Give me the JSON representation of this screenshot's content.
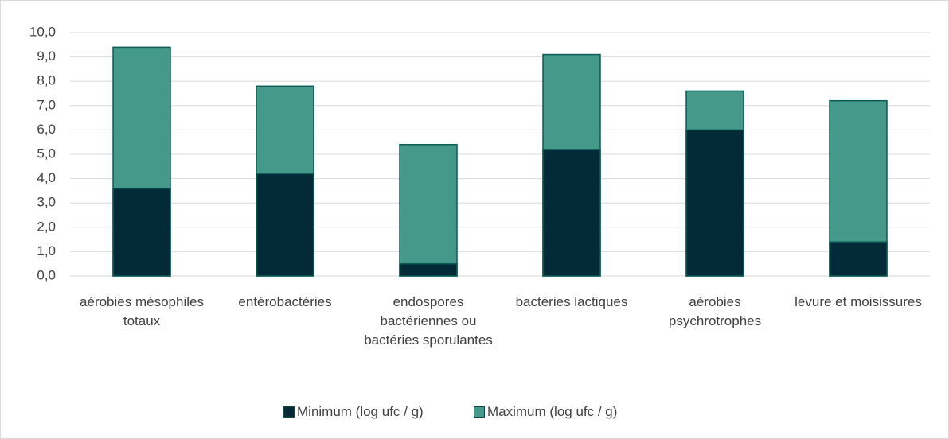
{
  "chart_data": {
    "type": "bar",
    "categories": [
      "aérobies mésophiles totaux",
      "entérobactéries",
      "endospores bactériennes ou bactéries sporulantes",
      "bactéries lactiques",
      "aérobies psychrotrophes",
      "levure et moisissures"
    ],
    "series": [
      {
        "name": "Maximum (log ufc / g)",
        "color": "#44998a",
        "values": [
          9.4,
          7.8,
          5.4,
          9.1,
          7.6,
          7.2
        ]
      },
      {
        "name": "Minimum (log ufc / g)",
        "color": "#032a37",
        "values": [
          3.6,
          4.2,
          0.5,
          5.2,
          6.0,
          1.4
        ]
      }
    ],
    "legend_order": [
      1,
      0
    ],
    "ylim": [
      0,
      10
    ],
    "yticks": [
      {
        "value": 0,
        "label": "0,0"
      },
      {
        "value": 1,
        "label": "1,0"
      },
      {
        "value": 2,
        "label": "2,0"
      },
      {
        "value": 3,
        "label": "3,0"
      },
      {
        "value": 4,
        "label": "4,0"
      },
      {
        "value": 5,
        "label": "5,0"
      },
      {
        "value": 6,
        "label": "6,0"
      },
      {
        "value": 7,
        "label": "7,0"
      },
      {
        "value": 8,
        "label": "8,0"
      },
      {
        "value": 9,
        "label": "9,0"
      },
      {
        "value": 10,
        "label": "10,0"
      }
    ],
    "grid": true
  }
}
